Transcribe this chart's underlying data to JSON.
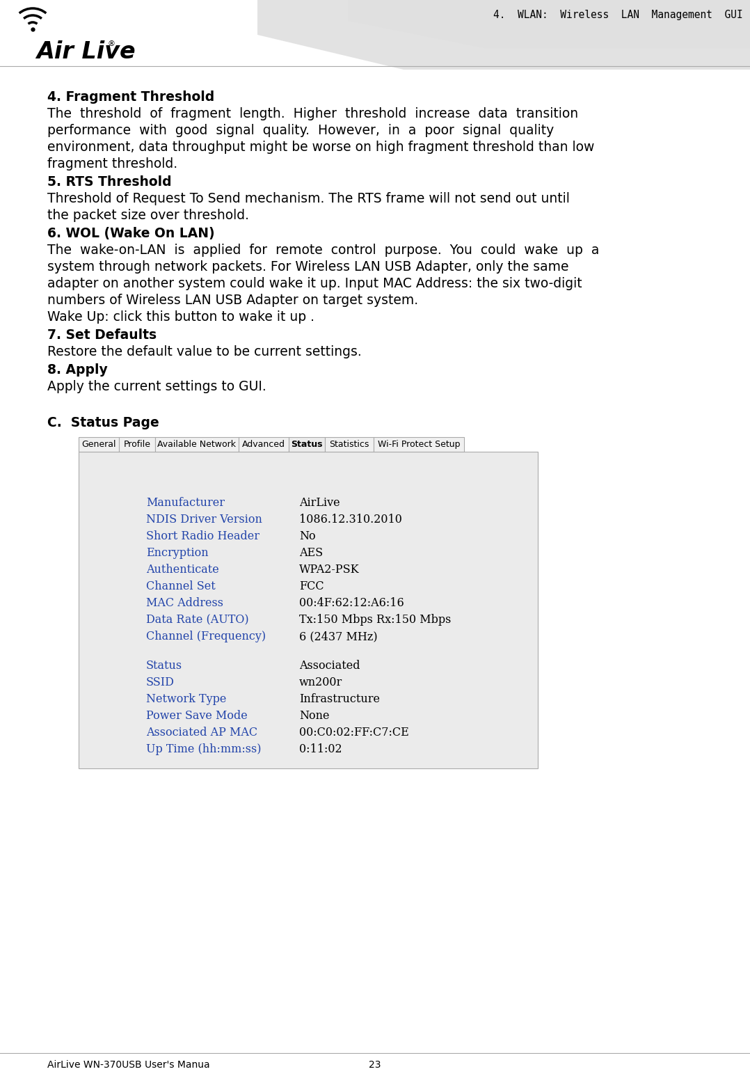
{
  "header_text": "4.  WLAN:  Wireless  LAN  Management  GUI",
  "footer_left": "AirLive WN-370USB User's Manua",
  "footer_center": "23",
  "section4_title": "4. Fragment Threshold",
  "section4_body_lines": [
    "The  threshold  of  fragment  length.  Higher  threshold  increase  data  transition",
    "performance  with  good  signal  quality.  However,  in  a  poor  signal  quality",
    "environment, data throughput might be worse on high fragment threshold than low",
    "fragment threshold."
  ],
  "section5_title": "5. RTS Threshold",
  "section5_body_lines": [
    "Threshold of Request To Send mechanism. The RTS frame will not send out until",
    "the packet size over threshold."
  ],
  "section6_title": "6. WOL (Wake On LAN)",
  "section6_body_lines": [
    "The  wake-on-LAN  is  applied  for  remote  control  purpose.  You  could  wake  up  a",
    "system through network packets. For Wireless LAN USB Adapter, only the same",
    "adapter on another system could wake it up. Input MAC Address: the six two-digit",
    "numbers of Wireless LAN USB Adapter on target system.",
    "Wake Up: click this button to wake it up ."
  ],
  "section7_title": "7. Set Defaults",
  "section7_body_lines": [
    "Restore the default value to be current settings."
  ],
  "section8_title": "8. Apply",
  "section8_body_lines": [
    "Apply the current settings to GUI."
  ],
  "sectionC_title": "C.  Status Page",
  "tab_labels": [
    "General",
    "Profile",
    "Available Network",
    "Advanced",
    "Status",
    "Statistics",
    "Wi-Fi Protect Setup"
  ],
  "tab_active_index": 4,
  "status_labels": [
    "Manufacturer",
    "NDIS Driver Version",
    "Short Radio Header",
    "Encryption",
    "Authenticate",
    "Channel Set",
    "MAC Address",
    "Data Rate (AUTO)",
    "Channel (Frequency)",
    "",
    "Status",
    "SSID",
    "Network Type",
    "Power Save Mode",
    "Associated AP MAC",
    "Up Time (hh:mm:ss)"
  ],
  "status_values": [
    "AirLive",
    "1086.12.310.2010",
    "No",
    "AES",
    "WPA2-PSK",
    "FCC",
    "00:4F:62:12:A6:16",
    "Tx:150 Mbps Rx:150 Mbps",
    "6 (2437 MHz)",
    "",
    "Associated",
    "wn200r",
    "Infrastructure",
    "None",
    "00:C0:02:FF:C7:CE",
    "0:11:02"
  ],
  "bg_color": "#ffffff",
  "panel_bg": "#ebebeb",
  "tab_bg": "#f0f0f0",
  "tab_active_bg": "#ebebeb",
  "status_label_color": "#2244aa",
  "status_value_color": "#000000",
  "title_color": "#000000",
  "body_text_color": "#000000",
  "header_line_color": "#999999",
  "footer_line_color": "#999999"
}
